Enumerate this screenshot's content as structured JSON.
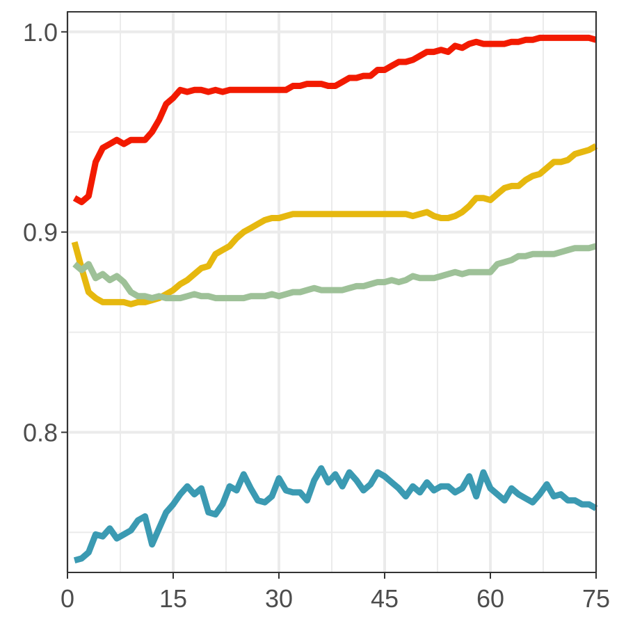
{
  "chart_data": {
    "type": "line",
    "title": "",
    "xlabel": "",
    "ylabel": "",
    "xlim": [
      0,
      75
    ],
    "ylim": [
      0.73,
      1.01
    ],
    "x_ticks": [
      0,
      15,
      30,
      45,
      60,
      75
    ],
    "x_tick_labels": [
      "0",
      "15",
      "30",
      "45",
      "60",
      "75"
    ],
    "y_ticks": [
      0.8,
      0.9,
      1.0
    ],
    "y_tick_labels": [
      "0.8",
      "0.9",
      "1.0"
    ],
    "y_minor_gridlines": [
      0.75,
      0.85,
      0.95
    ],
    "x_minor_gridlines": [
      7.5,
      22.5,
      37.5,
      52.5,
      67.5
    ],
    "grid": true,
    "legend": "none",
    "series": [
      {
        "color": "#F21A00",
        "x": [
          1,
          2,
          3,
          4,
          5,
          6,
          7,
          8,
          9,
          10,
          11,
          12,
          13,
          14,
          15,
          16,
          17,
          18,
          19,
          20,
          21,
          22,
          23,
          24,
          25,
          26,
          27,
          28,
          29,
          30,
          31,
          32,
          33,
          34,
          35,
          36,
          37,
          38,
          39,
          40,
          41,
          42,
          43,
          44,
          45,
          46,
          47,
          48,
          49,
          50,
          51,
          52,
          53,
          54,
          55,
          56,
          57,
          58,
          59,
          60,
          61,
          62,
          63,
          64,
          65,
          66,
          67,
          68,
          69,
          70,
          71,
          72,
          73,
          74,
          75
        ],
        "values": [
          0.917,
          0.915,
          0.918,
          0.935,
          0.942,
          0.944,
          0.946,
          0.944,
          0.946,
          0.946,
          0.946,
          0.95,
          0.956,
          0.964,
          0.967,
          0.971,
          0.97,
          0.971,
          0.971,
          0.97,
          0.971,
          0.97,
          0.971,
          0.971,
          0.971,
          0.971,
          0.971,
          0.971,
          0.971,
          0.971,
          0.971,
          0.973,
          0.973,
          0.974,
          0.974,
          0.974,
          0.973,
          0.973,
          0.975,
          0.977,
          0.977,
          0.978,
          0.978,
          0.981,
          0.981,
          0.983,
          0.985,
          0.985,
          0.986,
          0.988,
          0.99,
          0.99,
          0.991,
          0.99,
          0.993,
          0.992,
          0.994,
          0.995,
          0.994,
          0.994,
          0.994,
          0.994,
          0.995,
          0.995,
          0.996,
          0.996,
          0.997,
          0.997,
          0.997,
          0.997,
          0.997,
          0.997,
          0.997,
          0.997,
          0.996
        ]
      },
      {
        "color": "#E6B80F",
        "x": [
          1,
          2,
          3,
          4,
          5,
          6,
          7,
          8,
          9,
          10,
          11,
          12,
          13,
          14,
          15,
          16,
          17,
          18,
          19,
          20,
          21,
          22,
          23,
          24,
          25,
          26,
          27,
          28,
          29,
          30,
          31,
          32,
          33,
          34,
          35,
          36,
          37,
          38,
          39,
          40,
          41,
          42,
          43,
          44,
          45,
          46,
          47,
          48,
          49,
          50,
          51,
          52,
          53,
          54,
          55,
          56,
          57,
          58,
          59,
          60,
          61,
          62,
          63,
          64,
          65,
          66,
          67,
          68,
          69,
          70,
          71,
          72,
          73,
          74,
          75
        ],
        "values": [
          0.895,
          0.882,
          0.87,
          0.867,
          0.865,
          0.865,
          0.865,
          0.865,
          0.864,
          0.865,
          0.865,
          0.866,
          0.867,
          0.869,
          0.871,
          0.874,
          0.876,
          0.879,
          0.882,
          0.883,
          0.889,
          0.891,
          0.893,
          0.897,
          0.9,
          0.902,
          0.904,
          0.906,
          0.907,
          0.907,
          0.908,
          0.909,
          0.909,
          0.909,
          0.909,
          0.909,
          0.909,
          0.909,
          0.909,
          0.909,
          0.909,
          0.909,
          0.909,
          0.909,
          0.909,
          0.909,
          0.909,
          0.909,
          0.908,
          0.909,
          0.91,
          0.908,
          0.907,
          0.907,
          0.908,
          0.91,
          0.913,
          0.917,
          0.917,
          0.916,
          0.919,
          0.922,
          0.923,
          0.923,
          0.926,
          0.928,
          0.929,
          0.932,
          0.935,
          0.935,
          0.936,
          0.939,
          0.94,
          0.941,
          0.943
        ]
      },
      {
        "color": "#9EC198",
        "x": [
          1,
          2,
          3,
          4,
          5,
          6,
          7,
          8,
          9,
          10,
          11,
          12,
          13,
          14,
          15,
          16,
          17,
          18,
          19,
          20,
          21,
          22,
          23,
          24,
          25,
          26,
          27,
          28,
          29,
          30,
          31,
          32,
          33,
          34,
          35,
          36,
          37,
          38,
          39,
          40,
          41,
          42,
          43,
          44,
          45,
          46,
          47,
          48,
          49,
          50,
          51,
          52,
          53,
          54,
          55,
          56,
          57,
          58,
          59,
          60,
          61,
          62,
          63,
          64,
          65,
          66,
          67,
          68,
          69,
          70,
          71,
          72,
          73,
          74,
          75
        ],
        "values": [
          0.884,
          0.881,
          0.884,
          0.877,
          0.879,
          0.876,
          0.878,
          0.875,
          0.87,
          0.868,
          0.868,
          0.867,
          0.868,
          0.867,
          0.867,
          0.867,
          0.868,
          0.869,
          0.868,
          0.868,
          0.867,
          0.867,
          0.867,
          0.867,
          0.867,
          0.868,
          0.868,
          0.868,
          0.869,
          0.868,
          0.869,
          0.87,
          0.87,
          0.871,
          0.872,
          0.871,
          0.871,
          0.871,
          0.871,
          0.872,
          0.873,
          0.873,
          0.874,
          0.875,
          0.875,
          0.876,
          0.875,
          0.876,
          0.878,
          0.877,
          0.877,
          0.877,
          0.878,
          0.879,
          0.88,
          0.879,
          0.88,
          0.88,
          0.88,
          0.88,
          0.884,
          0.885,
          0.886,
          0.888,
          0.888,
          0.889,
          0.889,
          0.889,
          0.889,
          0.89,
          0.891,
          0.892,
          0.892,
          0.892,
          0.893
        ]
      },
      {
        "color": "#3B9AB2",
        "x": [
          1,
          2,
          3,
          4,
          5,
          6,
          7,
          8,
          9,
          10,
          11,
          12,
          13,
          14,
          15,
          16,
          17,
          18,
          19,
          20,
          21,
          22,
          23,
          24,
          25,
          26,
          27,
          28,
          29,
          30,
          31,
          32,
          33,
          34,
          35,
          36,
          37,
          38,
          39,
          40,
          41,
          42,
          43,
          44,
          45,
          46,
          47,
          48,
          49,
          50,
          51,
          52,
          53,
          54,
          55,
          56,
          57,
          58,
          59,
          60,
          61,
          62,
          63,
          64,
          65,
          66,
          67,
          68,
          69,
          70,
          71,
          72,
          73,
          74,
          75
        ],
        "values": [
          0.736,
          0.737,
          0.74,
          0.749,
          0.748,
          0.752,
          0.747,
          0.749,
          0.751,
          0.756,
          0.758,
          0.744,
          0.752,
          0.76,
          0.764,
          0.769,
          0.773,
          0.769,
          0.772,
          0.76,
          0.759,
          0.764,
          0.773,
          0.771,
          0.779,
          0.772,
          0.766,
          0.765,
          0.768,
          0.777,
          0.771,
          0.77,
          0.77,
          0.766,
          0.776,
          0.782,
          0.775,
          0.779,
          0.773,
          0.78,
          0.776,
          0.771,
          0.774,
          0.78,
          0.778,
          0.775,
          0.772,
          0.768,
          0.773,
          0.77,
          0.775,
          0.771,
          0.773,
          0.773,
          0.77,
          0.772,
          0.778,
          0.768,
          0.78,
          0.772,
          0.769,
          0.766,
          0.772,
          0.769,
          0.767,
          0.765,
          0.769,
          0.774,
          0.768,
          0.769,
          0.766,
          0.766,
          0.764,
          0.764,
          0.762
        ]
      }
    ]
  }
}
